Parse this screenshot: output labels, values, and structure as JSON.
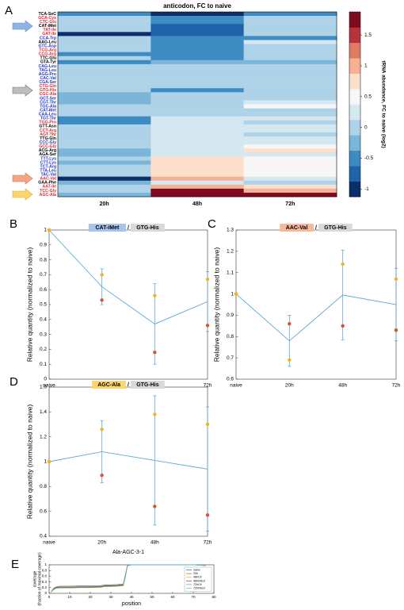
{
  "panel_labels": [
    "A",
    "B",
    "C",
    "D",
    "E"
  ],
  "chart_data": [
    {
      "type": "heatmap",
      "title": "anticodon, FC to naive",
      "columns": [
        "20h",
        "48h",
        "72h"
      ],
      "rows": [
        "TCA-SeC",
        "GCA-Cys",
        "CTC-Glu",
        "CAT-iMet",
        "TAT-Ile",
        "GAT-Ile",
        "CCA-Trp",
        "AAG-Leu",
        "GTC-Asp",
        "TCG-Arg",
        "CCG-Arg",
        "TTC-Glu",
        "GTA-Tyr",
        "CAG-Leu",
        "TAG-Leu",
        "AGG-Pro",
        "CAC-Val",
        "CGA-Ser",
        "CTG-Gln",
        "GTG-His",
        "CGC-Ala",
        "GCT-Ser",
        "CGT-Thr",
        "TGC-Ala",
        "CAT-Met",
        "CAA-Leu",
        "TGT-Thr",
        "TGG-Pro",
        "GTT-Asn",
        "CCT-Arg",
        "AGT-Thr",
        "TTG-Gln",
        "CCC-Gly",
        "GCC-Gly",
        "ACG-Arg",
        "AGA-Ser",
        "TTT-Lys",
        "CTT-Lys",
        "TCT-Arg",
        "TTA-Leu",
        "TAC-Val",
        "AAC-Val",
        "GAA-Phe",
        "AAT-Ile",
        "TCC-Gly",
        "AGC-Ala"
      ],
      "row_colors": [
        "#000000",
        "#e0282e",
        "#e0282e",
        "#000000",
        "#e0282e",
        "#e0282e",
        "#2233cc",
        "#000000",
        "#2233cc",
        "#e0282e",
        "#e0282e",
        "#000000",
        "#000000",
        "#2233cc",
        "#2233cc",
        "#2233cc",
        "#2233cc",
        "#2233cc",
        "#e0282e",
        "#e0282e",
        "#e0282e",
        "#2233cc",
        "#2233cc",
        "#2233cc",
        "#2233cc",
        "#2233cc",
        "#2233cc",
        "#e0282e",
        "#000000",
        "#e0282e",
        "#e0282e",
        "#000000",
        "#2233cc",
        "#e0282e",
        "#000000",
        "#000000",
        "#2233cc",
        "#2233cc",
        "#2233cc",
        "#2233cc",
        "#2233cc",
        "#e0282e",
        "#000000",
        "#e0282e",
        "#e0282e",
        "#e0282e"
      ],
      "values": [
        [
          -0.5,
          -0.9,
          -0.6
        ],
        [
          0,
          -0.6,
          -0.1
        ],
        [
          0.1,
          -0.6,
          -0.1
        ],
        [
          0,
          -0.75,
          0
        ],
        [
          0,
          -0.7,
          0.1
        ],
        [
          -0.9,
          -0.7,
          -0.1
        ],
        [
          0,
          -0.4,
          -0.4
        ],
        [
          0,
          -0.4,
          0.2
        ],
        [
          0,
          -0.4,
          0
        ],
        [
          -0.1,
          -0.4,
          0
        ],
        [
          -0.4,
          -0.4,
          0
        ],
        [
          0,
          -0.45,
          0
        ],
        [
          -0.45,
          -0.3,
          -0.15
        ],
        [
          0,
          -0.1,
          -0.1
        ],
        [
          0,
          -0.1,
          0
        ],
        [
          0,
          -0.1,
          0
        ],
        [
          0.1,
          0,
          0
        ],
        [
          0.1,
          0,
          0
        ],
        [
          0.1,
          0.05,
          0
        ],
        [
          0,
          -0.6,
          -0.1
        ],
        [
          -0.3,
          0.05,
          -0.05
        ],
        [
          -0.3,
          0.1,
          0.1
        ],
        [
          -0.3,
          0.1,
          0.3
        ],
        [
          0,
          0.1,
          0.4
        ],
        [
          -0.1,
          0.1,
          0
        ],
        [
          -0.1,
          0.1,
          0
        ],
        [
          -0.5,
          0.2,
          0.2
        ],
        [
          -0.55,
          0.2,
          -0.1
        ],
        [
          0,
          0.2,
          0.2
        ],
        [
          0,
          0.3,
          0.2
        ],
        [
          0.1,
          0.3,
          0
        ],
        [
          0.05,
          0.3,
          0.3
        ],
        [
          0,
          0.3,
          0.3
        ],
        [
          0.1,
          0.3,
          0.4
        ],
        [
          -0.2,
          0.3,
          0.8
        ],
        [
          -0.2,
          0.3,
          0.2
        ],
        [
          0,
          0.8,
          0.4
        ],
        [
          -0.2,
          0.8,
          0.4
        ],
        [
          0,
          0.8,
          0.4
        ],
        [
          0,
          0.8,
          0.4
        ],
        [
          0.1,
          0.8,
          0.5
        ],
        [
          -1,
          0.9,
          0.3
        ],
        [
          -0.2,
          0.3,
          0.1
        ],
        [
          0,
          0.9,
          0.7
        ],
        [
          0,
          1.7,
          1
        ],
        [
          -0.3,
          1.8,
          1.7
        ]
      ],
      "colorbar": {
        "label": "tRNA abundance, FC to naive (log2)",
        "clim": [
          -1.125,
          1.875
        ],
        "ticks": [
          1.5,
          1,
          0.5,
          0,
          -0.5,
          -1
        ],
        "colors": [
          "#0b2f6b",
          "#1f63a8",
          "#3c8cc3",
          "#7bb5d8",
          "#aed3e8",
          "#d5e7f1",
          "#f7f7f7",
          "#fde0cc",
          "#f5b196",
          "#e07b63",
          "#b8323a",
          "#7d0a21"
        ]
      }
    },
    {
      "type": "line",
      "tag": {
        "left": "CAT-iMet",
        "separator": "/",
        "right": "GTG-His",
        "left_color": "#a9c4eb",
        "right_color": "#d9d9d9"
      },
      "ylabel": "Relative quantity (normalized to naive)",
      "categories": [
        "naive",
        "20h",
        "48h",
        "72h"
      ],
      "mean": {
        "color": "#5fa8d3",
        "values": [
          1,
          0.62,
          0.37,
          0.52
        ],
        "errors": [
          null,
          0.12,
          0.27,
          0.2
        ]
      },
      "replicates": [
        {
          "color": "#d9542b",
          "values": [
            1,
            0.53,
            0.18,
            0.36
          ]
        },
        {
          "color": "#f0b323",
          "values": [
            1,
            0.7,
            0.56,
            0.67
          ]
        }
      ],
      "ylim": [
        0,
        1
      ],
      "yticks": [
        0,
        0.1,
        0.2,
        0.3,
        0.4,
        0.5,
        0.6,
        0.7,
        0.8,
        0.9,
        1
      ]
    },
    {
      "type": "line",
      "tag": {
        "left": "AAC-Val",
        "separator": "/",
        "right": "GTG-His",
        "left_color": "#f4b89c",
        "right_color": "#d9d9d9"
      },
      "ylabel": "Relative quantity (normalized to naive)",
      "categories": [
        "naive",
        "20h",
        "48h",
        "72h"
      ],
      "mean": {
        "color": "#5fa8d3",
        "values": [
          1,
          0.78,
          0.995,
          0.95
        ],
        "errors": [
          null,
          0.12,
          0.21,
          0.17
        ]
      },
      "replicates": [
        {
          "color": "#d9542b",
          "values": [
            1,
            0.86,
            0.85,
            0.83
          ]
        },
        {
          "color": "#f0b323",
          "values": [
            1,
            0.69,
            1.14,
            1.07
          ]
        }
      ],
      "ylim": [
        0.6,
        1.3
      ],
      "yticks": [
        0.6,
        0.7,
        0.8,
        0.9,
        1,
        1.1,
        1.2,
        1.3
      ]
    },
    {
      "type": "line",
      "tag": {
        "left": "AGC-Ala",
        "separator": "/",
        "right": "GTG-His",
        "left_color": "#fbd66e",
        "right_color": "#d9d9d9"
      },
      "ylabel": "Relative quantity (normalized to naive)",
      "xlabel": "Ala-AGC-3-1",
      "categories": [
        "naive",
        "20h",
        "48h",
        "72h"
      ],
      "mean": {
        "color": "#5fa8d3",
        "values": [
          1,
          1.08,
          1.01,
          0.94
        ],
        "errors": [
          null,
          0.25,
          0.52,
          0.5
        ]
      },
      "replicates": [
        {
          "color": "#d9542b",
          "values": [
            1,
            0.89,
            0.64,
            0.57
          ]
        },
        {
          "color": "#f0b323",
          "values": [
            1,
            1.26,
            1.38,
            1.3
          ]
        }
      ],
      "ylim": [
        0.4,
        1.6
      ],
      "yticks": [
        0.4,
        0.6,
        0.8,
        1,
        1.2,
        1.4,
        1.6
      ]
    },
    {
      "type": "line",
      "xlabel": "position",
      "ylabel": [
        "coverage",
        "(fraction of maximal coverage)"
      ],
      "x": [
        1,
        2,
        3,
        5,
        10,
        15,
        20,
        25,
        27,
        30,
        33,
        35,
        36,
        37,
        38,
        40,
        45,
        50,
        60,
        70,
        76
      ],
      "series": [
        {
          "name": "naive",
          "color": "#0072bd",
          "values": [
            0.05,
            0.15,
            0.2,
            0.22,
            0.22,
            0.23,
            0.23,
            0.24,
            0.27,
            0.27,
            0.28,
            0.29,
            0.3,
            0.6,
            0.97,
            1,
            1,
            1,
            1,
            1,
            0.98
          ]
        },
        {
          "name": "20h",
          "color": "#d95319",
          "values": [
            0.06,
            0.17,
            0.22,
            0.25,
            0.25,
            0.26,
            0.26,
            0.27,
            0.3,
            0.3,
            0.31,
            0.32,
            0.33,
            0.65,
            0.98,
            1,
            1,
            1,
            1,
            1,
            0.98
          ]
        },
        {
          "name": "48hCtl",
          "color": "#edb120",
          "values": [
            0.04,
            0.13,
            0.18,
            0.2,
            0.2,
            0.21,
            0.21,
            0.22,
            0.25,
            0.25,
            0.26,
            0.27,
            0.28,
            0.58,
            0.96,
            1,
            1,
            1,
            1,
            1,
            0.97
          ]
        },
        {
          "name": "48hInfect",
          "color": "#7e2f8e",
          "values": [
            0.05,
            0.14,
            0.19,
            0.21,
            0.21,
            0.22,
            0.22,
            0.23,
            0.26,
            0.26,
            0.27,
            0.28,
            0.29,
            0.6,
            0.97,
            1,
            1,
            1,
            1,
            1,
            0.98
          ]
        },
        {
          "name": "72hCtl",
          "color": "#77ac30",
          "values": [
            0.04,
            0.12,
            0.17,
            0.19,
            0.19,
            0.2,
            0.2,
            0.21,
            0.24,
            0.24,
            0.25,
            0.26,
            0.27,
            0.55,
            0.96,
            1,
            1,
            1,
            1,
            1,
            0.97
          ]
        },
        {
          "name": "72hInfect",
          "color": "#4dbeee",
          "values": [
            0.05,
            0.16,
            0.21,
            0.23,
            0.23,
            0.24,
            0.24,
            0.25,
            0.28,
            0.28,
            0.29,
            0.3,
            0.31,
            0.62,
            0.97,
            1,
            1,
            1,
            1,
            1,
            0.98
          ]
        }
      ],
      "xlim": [
        0,
        80
      ],
      "xticks": [
        0,
        10,
        20,
        30,
        40,
        50,
        60,
        70,
        80
      ],
      "ylim": [
        0,
        1
      ],
      "yticks": [
        0,
        0.2,
        0.4,
        0.6,
        0.8,
        1
      ],
      "legend": "upper right"
    }
  ]
}
